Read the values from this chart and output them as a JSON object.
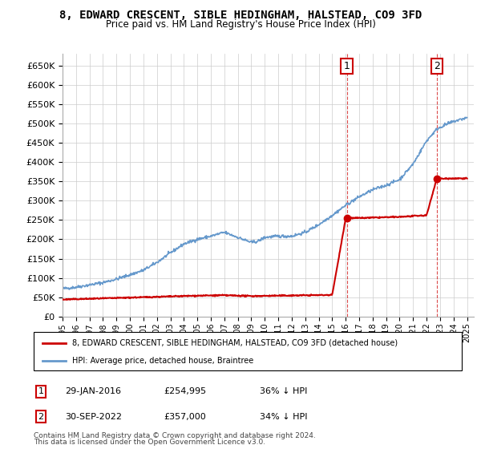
{
  "title": "8, EDWARD CRESCENT, SIBLE HEDINGHAM, HALSTEAD, CO9 3FD",
  "subtitle": "Price paid vs. HM Land Registry's House Price Index (HPI)",
  "legend_line1": "8, EDWARD CRESCENT, SIBLE HEDINGHAM, HALSTEAD, CO9 3FD (detached house)",
  "legend_line2": "HPI: Average price, detached house, Braintree",
  "footnote_line1": "Contains HM Land Registry data © Crown copyright and database right 2024.",
  "footnote_line2": "This data is licensed under the Open Government Licence v3.0.",
  "annotation1_date": "29-JAN-2016",
  "annotation1_price": "£254,995",
  "annotation1_hpi": "36% ↓ HPI",
  "annotation2_date": "30-SEP-2022",
  "annotation2_price": "£357,000",
  "annotation2_hpi": "34% ↓ HPI",
  "red_color": "#cc0000",
  "blue_color": "#6699cc",
  "ylim": [
    0,
    680000
  ],
  "yticks": [
    0,
    50000,
    100000,
    150000,
    200000,
    250000,
    300000,
    350000,
    400000,
    450000,
    500000,
    550000,
    600000,
    650000
  ],
  "marker1_year": 2016.08,
  "marker1_value": 254995,
  "marker2_year": 2022.75,
  "marker2_value": 357000,
  "vline1_year": 2016.08,
  "vline2_year": 2022.75,
  "xmin": 1995,
  "xmax": 2025.5
}
